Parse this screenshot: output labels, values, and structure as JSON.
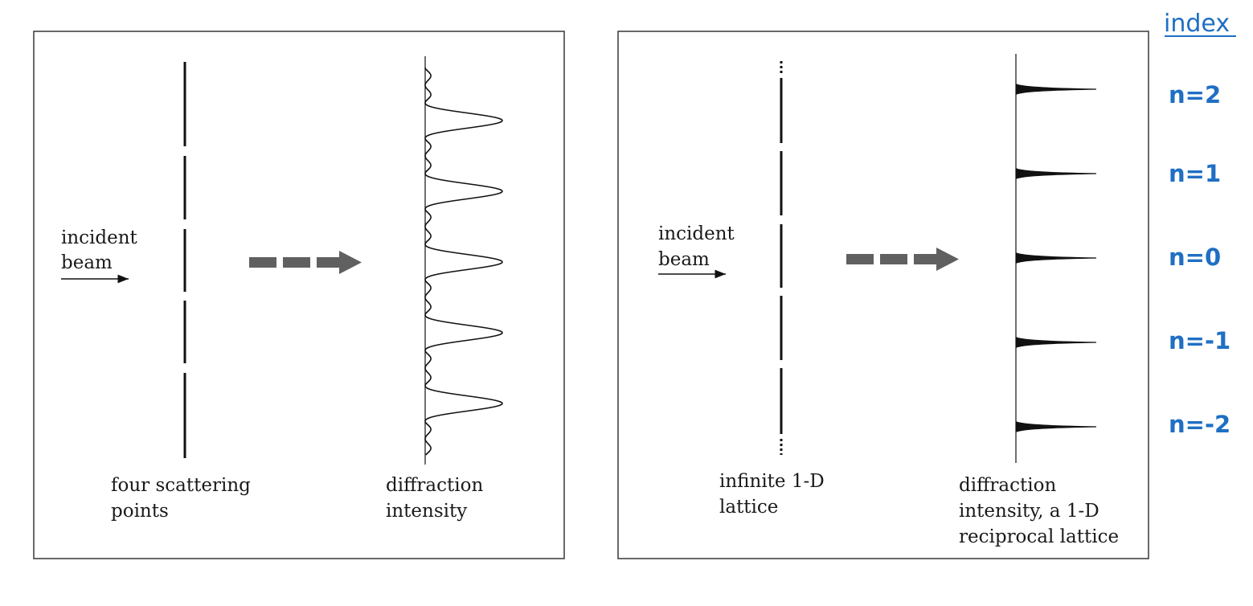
{
  "colors": {
    "index_blue": "#1f6fc4",
    "arrow_gray": "#606060",
    "line_black": "#111111",
    "frame": "#444444"
  },
  "left_panel": {
    "incident_label_1": "incident",
    "incident_label_2": "beam",
    "scatterer_caption_1": "four scattering",
    "scatterer_caption_2": "points",
    "intensity_caption_1": "diffraction",
    "intensity_caption_2": "intensity"
  },
  "right_panel": {
    "incident_label_1": "incident",
    "incident_label_2": "beam",
    "lattice_caption_1": "infinite 1-D",
    "lattice_caption_2": "lattice",
    "intensity_caption_1": "diffraction",
    "intensity_caption_2": "intensity, a 1-D",
    "intensity_caption_3": "reciprocal lattice"
  },
  "index_column": {
    "heading": "index",
    "labels": [
      "n=2",
      "n=1",
      "n=0",
      "n=-1",
      "n=-2"
    ]
  }
}
